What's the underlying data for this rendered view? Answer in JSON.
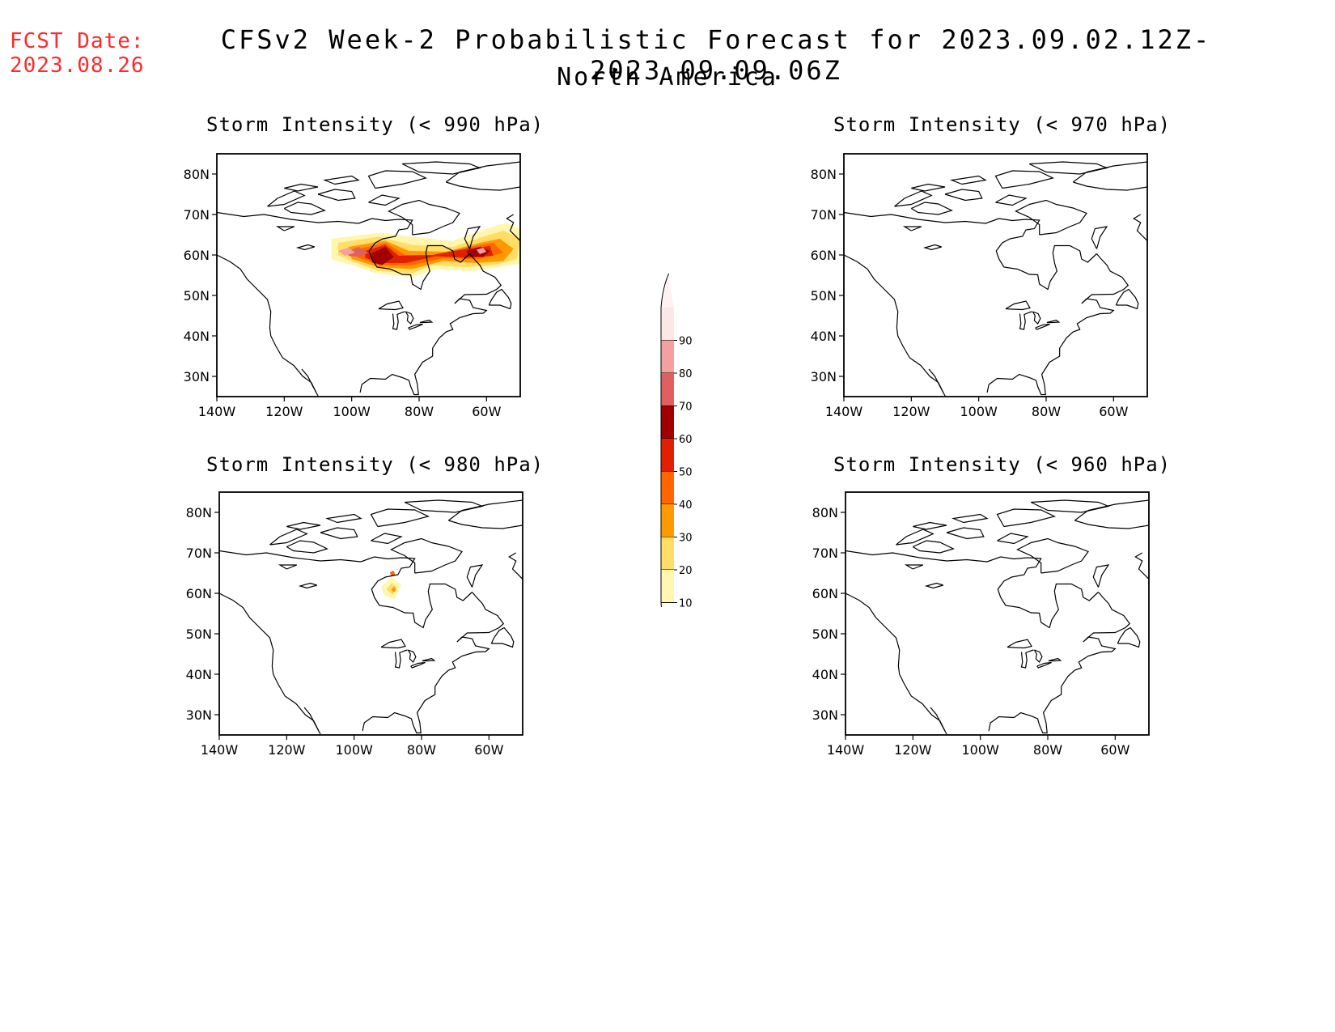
{
  "header": {
    "fcst_label": "FCST Date:",
    "fcst_date": "2023.08.26",
    "title": "CFSv2 Week-2 Probabilistic Forecast for 2023.09.02.12Z-2023.09.09.06Z",
    "region": "North America"
  },
  "panels": [
    {
      "title": "Storm Intensity (< 990 hPa)",
      "threshold_hpa": 990,
      "signal": "strong",
      "features": [
        "band of 10-70% probability along 57-65N from about 105W to 50W, maximum 60-70% near 90W and 60W"
      ]
    },
    {
      "title": "Storm Intensity (< 970 hPa)",
      "threshold_hpa": 970,
      "signal": "none",
      "features": []
    },
    {
      "title": "Storm Intensity (< 980 hPa)",
      "threshold_hpa": 980,
      "signal": "weak",
      "features": [
        "small 10-40% area near 60-65N, 88W"
      ]
    },
    {
      "title": "Storm Intensity (< 960 hPa)",
      "threshold_hpa": 960,
      "signal": "none",
      "features": []
    }
  ],
  "axes": {
    "lat_labels": [
      "80N",
      "70N",
      "60N",
      "50N",
      "40N",
      "30N"
    ],
    "lon_labels": [
      "140W",
      "120W",
      "100W",
      "80W",
      "60W"
    ],
    "lat_range": [
      25,
      85
    ],
    "lon_range": [
      -140,
      -50
    ]
  },
  "colorbar": {
    "labels": [
      "90",
      "80",
      "70",
      "60",
      "50",
      "40",
      "30",
      "20",
      "10"
    ],
    "colors": [
      "#fde6e6",
      "#f4a0a0",
      "#e06060",
      "#a00000",
      "#e02000",
      "#ff6600",
      "#ff9900",
      "#ffdd66",
      "#fff6b0"
    ]
  }
}
